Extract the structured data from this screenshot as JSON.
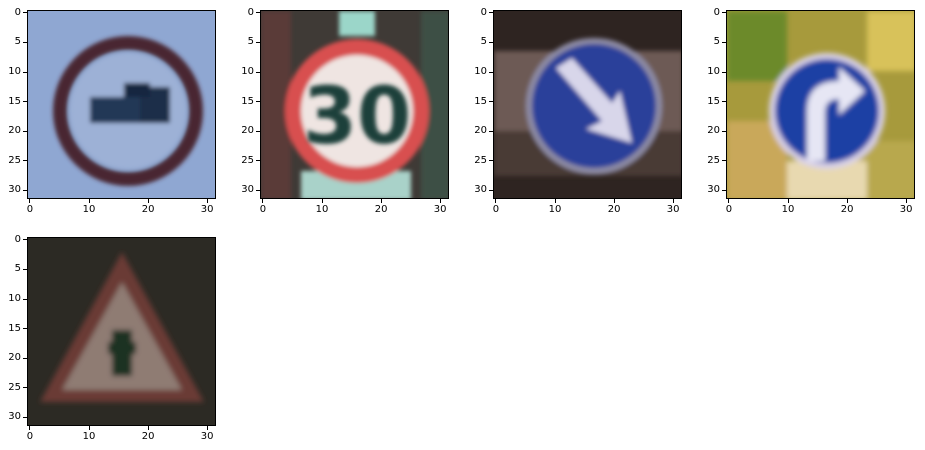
{
  "axes": {
    "x_ticks": [
      "0",
      "10",
      "20",
      "30"
    ],
    "y_ticks": [
      "0",
      "5",
      "10",
      "15",
      "20",
      "25",
      "30"
    ]
  },
  "panels": [
    {
      "sign": "no-trucks-sign"
    },
    {
      "sign": "speed-limit-30-sign",
      "text": "30"
    },
    {
      "sign": "keep-right-sign"
    },
    {
      "sign": "turn-right-ahead-sign"
    },
    {
      "sign": "right-of-way-at-intersection-sign"
    }
  ]
}
